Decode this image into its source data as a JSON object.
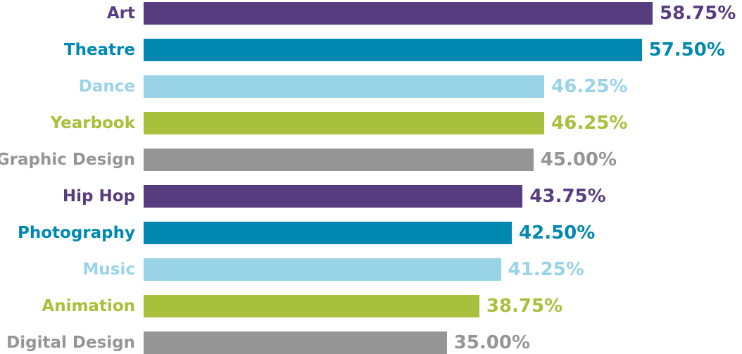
{
  "chart_data": {
    "type": "bar",
    "orientation": "horizontal",
    "categories": [
      "Art",
      "Theatre",
      "Dance",
      "Yearbook",
      "Graphic Design",
      "Hip Hop",
      "Photography",
      "Music",
      "Animation",
      "Digital Design"
    ],
    "values": [
      58.75,
      57.5,
      46.25,
      46.25,
      45.0,
      43.75,
      42.5,
      41.25,
      38.75,
      35.0
    ],
    "value_labels": [
      "58.75%",
      "57.50%",
      "46.25%",
      "46.25%",
      "45.00%",
      "43.75%",
      "42.50%",
      "41.25%",
      "38.75%",
      "35.00%"
    ],
    "colors": [
      "#573d80",
      "#0088b0",
      "#99d3e8",
      "#a8c03b",
      "#959595",
      "#573d80",
      "#0088b0",
      "#99d3e8",
      "#a8c03b",
      "#959595"
    ],
    "title": "",
    "xlabel": "",
    "ylabel": "",
    "xlim": [
      0,
      58.75
    ],
    "grid": false,
    "legend": "none"
  }
}
